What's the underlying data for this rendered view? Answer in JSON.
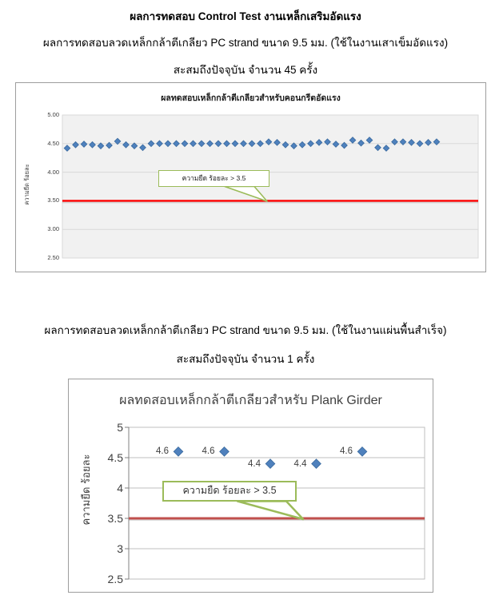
{
  "document": {
    "title": "ผลการทดสอบ Control Test งานเหล็กเสริมอัดแรง",
    "subtitle1": "ผลการทดสอบลวดเหล็กกล้าตีเกลียว PC strand ขนาด 9.5 มม. (ใช้ในงานเสาเข็มอัดแรง)",
    "subtitle2": "สะสมถึงปัจจุบัน จำนวน 45 ครั้ง",
    "mid_caption1": "ผลการทดสอบลวดเหล็กกล้าตีเกลียว PC strand ขนาด 9.5 มม. (ใช้ในงานแผ่นพื้นสำเร็จ)",
    "mid_caption2": "สะสมถึงปัจจุบัน จำนวน 1 ครั้ง"
  },
  "chart_data": [
    {
      "type": "scatter",
      "title": "ผลทดสอบเหล็กกล้าตีเกลียวสำหรับคอนกรีตอัดแรง",
      "ylabel": "ความยืด ร้อยละ",
      "xlabel": "",
      "ylim": [
        2.5,
        5.0
      ],
      "yticks": [
        "5.00",
        "4.50",
        "4.00",
        "3.50",
        "3.00",
        "2.50"
      ],
      "grid": true,
      "legend": false,
      "n_points": 45,
      "values": [
        4.42,
        4.48,
        4.49,
        4.48,
        4.46,
        4.47,
        4.54,
        4.48,
        4.46,
        4.43,
        4.5,
        4.5,
        4.5,
        4.5,
        4.5,
        4.5,
        4.5,
        4.5,
        4.5,
        4.5,
        4.5,
        4.5,
        4.5,
        4.5,
        4.53,
        4.52,
        4.48,
        4.46,
        4.48,
        4.5,
        4.52,
        4.53,
        4.49,
        4.47,
        4.56,
        4.51,
        4.56,
        4.43,
        4.42,
        4.53,
        4.53,
        4.52,
        4.5,
        4.52,
        4.53
      ],
      "ref_line": {
        "value": 3.5,
        "color": "#FF0000"
      },
      "annotation": "ความยืด ร้อยละ > 3.5",
      "marker_color": "#4F81BD",
      "marker_edge": "#3A6A9E",
      "plot_bg": "#F1F1F1",
      "grid_color": "#D9D9D9",
      "callout_color": "#9BBB59"
    },
    {
      "type": "scatter",
      "title": "ผลทดสอบเหล็กกล้าตีเกลียวสำหรับ Plank Girder",
      "ylabel": "ความยืด ร้อยละ",
      "xlabel": "",
      "ylim": [
        2.5,
        5.0
      ],
      "yticks": [
        "5",
        "4.5",
        "4",
        "3.5",
        "3",
        "2.5"
      ],
      "grid": true,
      "legend": false,
      "n_points": 5,
      "values": [
        4.6,
        4.6,
        4.4,
        4.4,
        4.6
      ],
      "point_labels": [
        "4.6",
        "4.6",
        "4.4",
        "4.4",
        "4.6"
      ],
      "ref_line": {
        "value": 3.5,
        "color": "#C0504D"
      },
      "annotation": "ความยืด ร้อยละ > 3.5",
      "marker_color": "#4F81BD",
      "marker_edge": "#3A6A9E",
      "plot_bg": "#FFFFFF",
      "grid_color": "#BFBFBF",
      "axis_color": "#808080",
      "callout_color": "#9BBB59"
    }
  ]
}
